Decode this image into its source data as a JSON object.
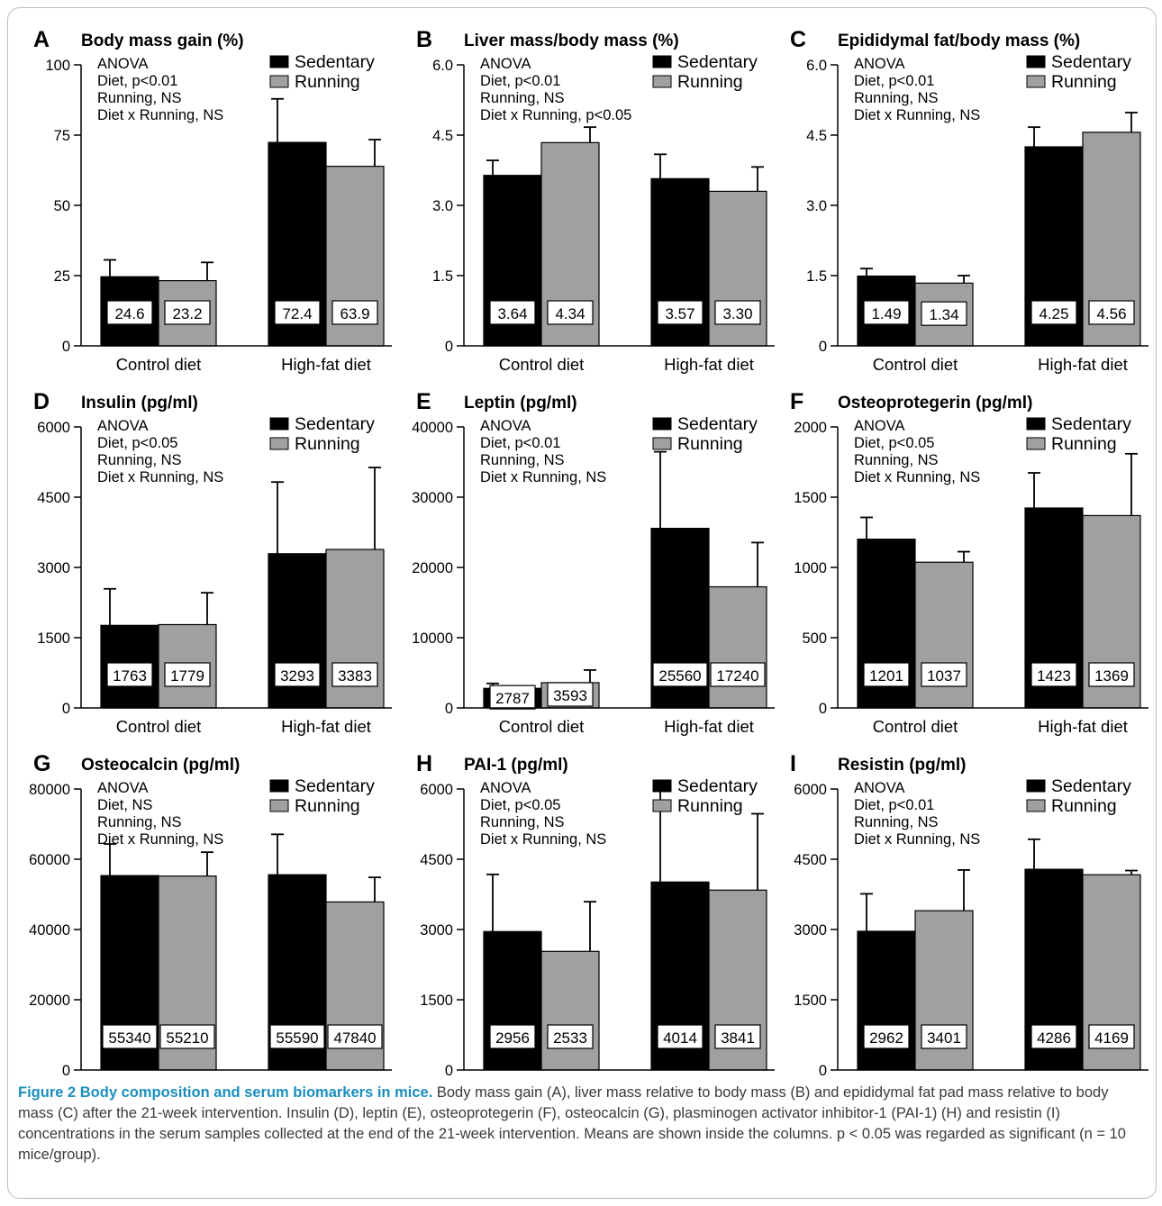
{
  "figure": {
    "caption_title": "Figure 2 Body composition and serum biomarkers in mice.",
    "caption_body": "Body mass gain (A), liver mass relative to body mass (B) and epididymal fat pad mass relative to body mass (C) after the 21-week intervention. Insulin (D), leptin (E), osteoprotegerin (F), osteocalcin (G), plasminogen activator inhibitor-1 (PAI-1) (H) and resistin (I) concentrations in the serum samples collected at the end of the 21-week intervention. Means are shown inside the columns. p < 0.05 was regarded as significant (n = 10 mice/group).",
    "colors": {
      "sedentary": "#000000",
      "running": "#a0a0a0"
    }
  },
  "chart_data": [
    {
      "type": "bar",
      "panel": "A",
      "title": "Body mass gain (%)",
      "categories": [
        "Control diet",
        "High-fat diet"
      ],
      "series": [
        {
          "name": "Sedentary",
          "values": [
            24.6,
            72.4
          ],
          "errors": [
            6.0,
            15.5
          ],
          "labels": [
            "24.6",
            "72.4"
          ]
        },
        {
          "name": "Running",
          "values": [
            23.2,
            63.9
          ],
          "errors": [
            6.5,
            9.5
          ],
          "labels": [
            "23.2",
            "63.9"
          ]
        }
      ],
      "ylim": [
        0,
        100
      ],
      "yticks": [
        "0",
        "25",
        "50",
        "75",
        "100"
      ],
      "anova": [
        "ANOVA",
        "Diet, p<0.01",
        "Running, NS",
        "Diet x Running, NS"
      ],
      "legend": "top-right"
    },
    {
      "type": "bar",
      "panel": "B",
      "title": "Liver mass/body mass (%)",
      "categories": [
        "Control diet",
        "High-fat diet"
      ],
      "series": [
        {
          "name": "Sedentary",
          "values": [
            3.64,
            3.57
          ],
          "errors": [
            0.32,
            0.52
          ],
          "labels": [
            "3.64",
            "3.57"
          ]
        },
        {
          "name": "Running",
          "values": [
            4.34,
            3.3
          ],
          "errors": [
            0.33,
            0.52
          ],
          "labels": [
            "4.34",
            "3.30"
          ]
        }
      ],
      "ylim": [
        0,
        6
      ],
      "yticks": [
        "0",
        "1.5",
        "3.0",
        "4.5",
        "6.0"
      ],
      "anova": [
        "ANOVA",
        "Diet, p<0.01",
        "Running, NS",
        "Diet x Running, p<0.05"
      ],
      "legend": "top-right"
    },
    {
      "type": "bar",
      "panel": "C",
      "title": "Epididymal fat/body mass (%)",
      "categories": [
        "Control diet",
        "High-fat diet"
      ],
      "series": [
        {
          "name": "Sedentary",
          "values": [
            1.49,
            4.25
          ],
          "errors": [
            0.16,
            0.42
          ],
          "labels": [
            "1.49",
            "4.25"
          ]
        },
        {
          "name": "Running",
          "values": [
            1.34,
            4.56
          ],
          "errors": [
            0.16,
            0.42
          ],
          "labels": [
            "1.34",
            "4.56"
          ]
        }
      ],
      "ylim": [
        0,
        6
      ],
      "yticks": [
        "0",
        "1.5",
        "3.0",
        "4.5",
        "6.0"
      ],
      "anova": [
        "ANOVA",
        "Diet, p<0.01",
        "Running, NS",
        "Diet x Running, NS"
      ],
      "legend": "top-right"
    },
    {
      "type": "bar",
      "panel": "D",
      "title": "Insulin (pg/ml)",
      "categories": [
        "Control diet",
        "High-fat diet"
      ],
      "series": [
        {
          "name": "Sedentary",
          "values": [
            1763,
            3293
          ],
          "errors": [
            780,
            1530
          ],
          "labels": [
            "1763",
            "3293"
          ]
        },
        {
          "name": "Running",
          "values": [
            1779,
            3383
          ],
          "errors": [
            680,
            1750
          ],
          "labels": [
            "1779",
            "3383"
          ]
        }
      ],
      "ylim": [
        0,
        6000
      ],
      "yticks": [
        "0",
        "1500",
        "3000",
        "4500",
        "6000"
      ],
      "anova": [
        "ANOVA",
        "Diet, p<0.05",
        "Running, NS",
        "Diet x Running, NS"
      ],
      "legend": "top-right"
    },
    {
      "type": "bar",
      "panel": "E",
      "title": "Leptin (pg/ml)",
      "categories": [
        "Control diet",
        "High-fat diet"
      ],
      "series": [
        {
          "name": "Sedentary",
          "values": [
            2787,
            25560
          ],
          "errors": [
            700,
            10900
          ],
          "labels": [
            "2787",
            "25560"
          ]
        },
        {
          "name": "Running",
          "values": [
            3593,
            17240
          ],
          "errors": [
            1800,
            6300
          ],
          "labels": [
            "3593",
            "17240"
          ]
        }
      ],
      "ylim": [
        0,
        40000
      ],
      "yticks": [
        "0",
        "10000",
        "20000",
        "30000",
        "40000"
      ],
      "anova": [
        "ANOVA",
        "Diet, p<0.01",
        "Running, NS",
        "Diet x Running, NS"
      ],
      "legend": "top-right"
    },
    {
      "type": "bar",
      "panel": "F",
      "title": "Osteoprotegerin (pg/ml)",
      "categories": [
        "Control diet",
        "High-fat diet"
      ],
      "series": [
        {
          "name": "Sedentary",
          "values": [
            1201,
            1423
          ],
          "errors": [
            155,
            250
          ],
          "labels": [
            "1201",
            "1423"
          ]
        },
        {
          "name": "Running",
          "values": [
            1037,
            1369
          ],
          "errors": [
            75,
            440
          ],
          "labels": [
            "1037",
            "1369"
          ]
        }
      ],
      "ylim": [
        0,
        2000
      ],
      "yticks": [
        "0",
        "500",
        "1000",
        "1500",
        "2000"
      ],
      "anova": [
        "ANOVA",
        "Diet, p<0.05",
        "Running, NS",
        "Diet x Running, NS"
      ],
      "legend": "top-right"
    },
    {
      "type": "bar",
      "panel": "G",
      "title": "Osteocalcin (pg/ml)",
      "categories": [
        "Control diet",
        "High-fat diet"
      ],
      "series": [
        {
          "name": "Sedentary",
          "values": [
            55340,
            55590
          ],
          "errors": [
            9000,
            11500
          ],
          "labels": [
            "55340",
            "55590"
          ]
        },
        {
          "name": "Running",
          "values": [
            55210,
            47840
          ],
          "errors": [
            6800,
            7000
          ],
          "labels": [
            "55210",
            "47840"
          ]
        }
      ],
      "ylim": [
        0,
        80000
      ],
      "yticks": [
        "0",
        "20000",
        "40000",
        "60000",
        "80000"
      ],
      "anova": [
        "ANOVA",
        "Diet, NS",
        "Running, NS",
        "Diet x Running, NS"
      ],
      "legend": "top-right"
    },
    {
      "type": "bar",
      "panel": "H",
      "title": "PAI-1 (pg/ml)",
      "categories": [
        "Control diet",
        "High-fat diet"
      ],
      "series": [
        {
          "name": "Sedentary",
          "values": [
            2956,
            4014
          ],
          "errors": [
            1220,
            1950
          ],
          "labels": [
            "2956",
            "4014"
          ]
        },
        {
          "name": "Running",
          "values": [
            2533,
            3841
          ],
          "errors": [
            1060,
            1630
          ],
          "labels": [
            "2533",
            "3841"
          ]
        }
      ],
      "ylim": [
        0,
        6000
      ],
      "yticks": [
        "0",
        "1500",
        "3000",
        "4500",
        "6000"
      ],
      "anova": [
        "ANOVA",
        "Diet, p<0.05",
        "Running, NS",
        "Diet x Running, NS"
      ],
      "legend": "top-right"
    },
    {
      "type": "bar",
      "panel": "I",
      "title": "Resistin (pg/ml)",
      "categories": [
        "Control diet",
        "High-fat diet"
      ],
      "series": [
        {
          "name": "Sedentary",
          "values": [
            2962,
            4286
          ],
          "errors": [
            800,
            640
          ],
          "labels": [
            "2962",
            "4286"
          ]
        },
        {
          "name": "Running",
          "values": [
            3401,
            4169
          ],
          "errors": [
            870,
            90
          ],
          "labels": [
            "3401",
            "4169"
          ]
        }
      ],
      "ylim": [
        0,
        6000
      ],
      "yticks": [
        "0",
        "1500",
        "3000",
        "4500",
        "6000"
      ],
      "anova": [
        "ANOVA",
        "Diet, p<0.01",
        "Running, NS",
        "Diet x Running, NS"
      ],
      "legend": "top-right"
    }
  ]
}
